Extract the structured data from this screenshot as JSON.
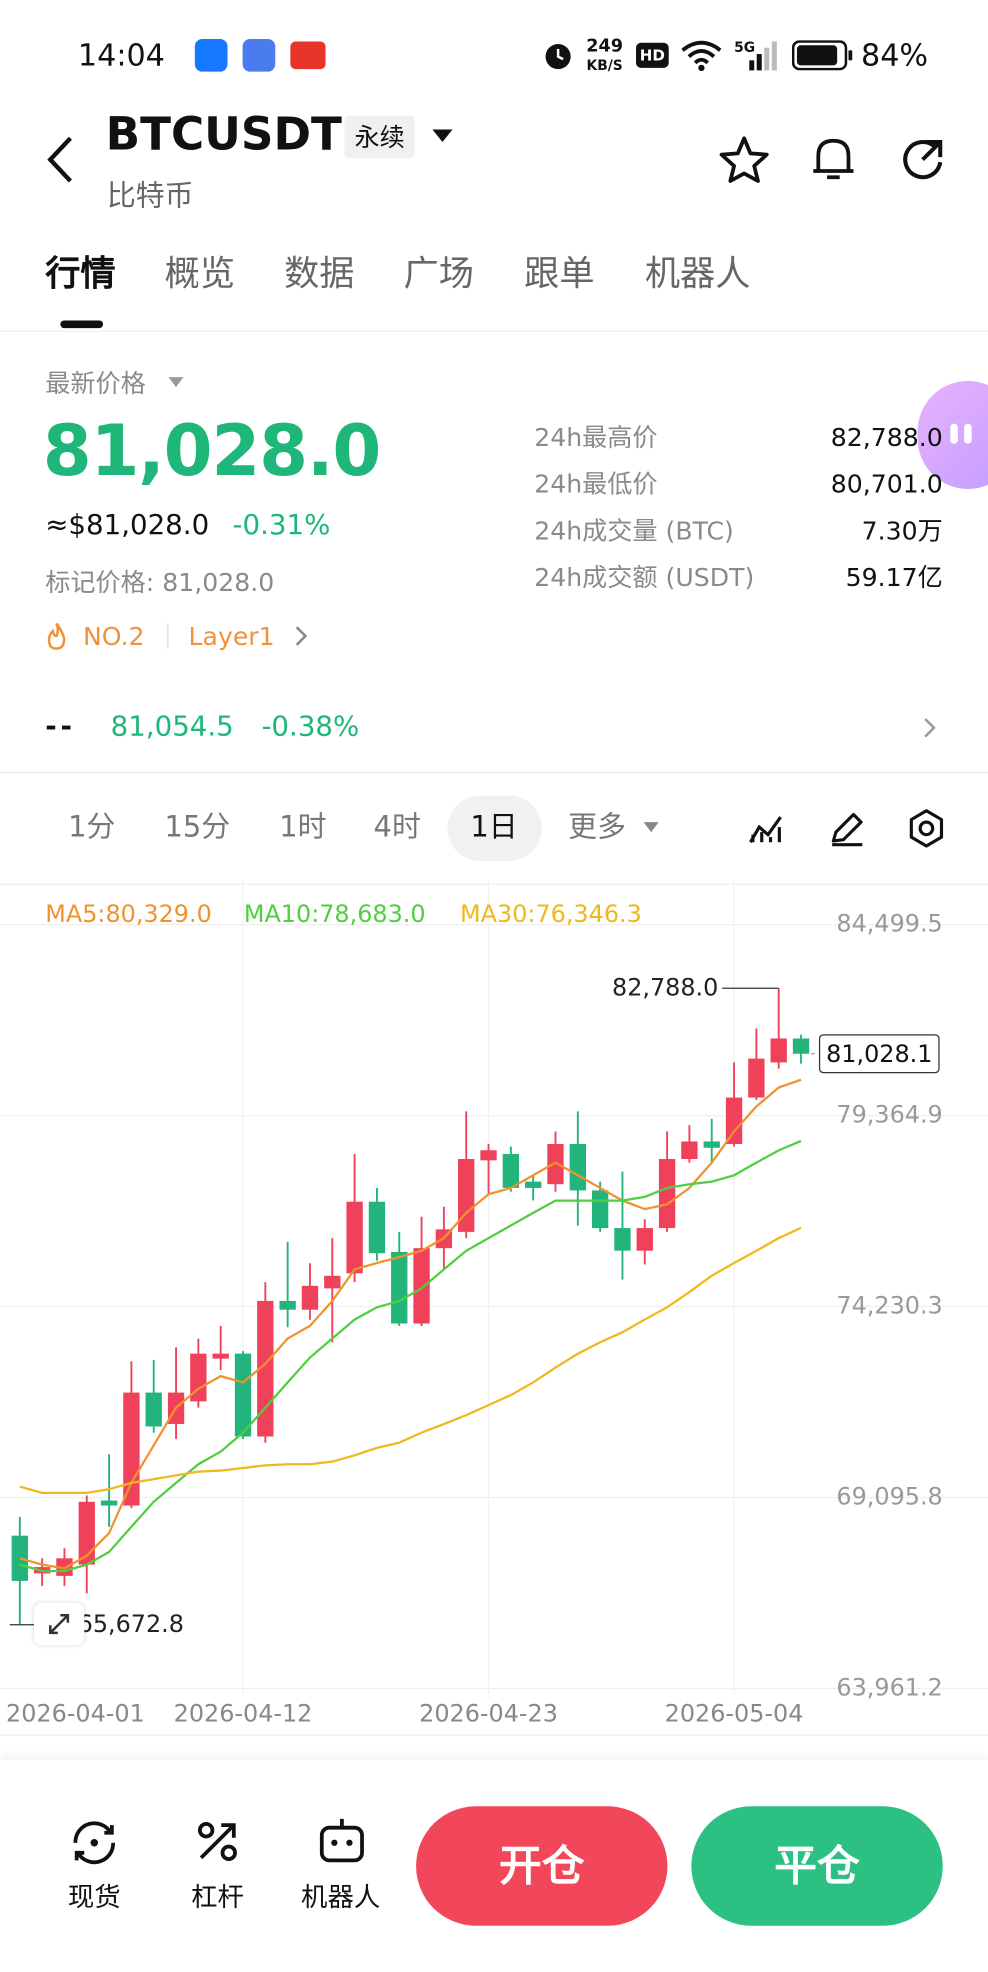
{
  "status_bar": {
    "time": "14:04",
    "network_speed": "249",
    "network_unit": "KB/S",
    "hd": "HD",
    "signal": "5G",
    "battery": "84%"
  },
  "header": {
    "symbol": "BTCUSDT",
    "contract": "永续",
    "name": "比特币"
  },
  "tabs": [
    "行情",
    "概览",
    "数据",
    "广场",
    "跟单",
    "机器人"
  ],
  "price_panel": {
    "label": "最新价格",
    "last_price": "81,028.0",
    "usd_price": "≈$81,028.0",
    "change": "-0.31%",
    "mark_price": "标记价格: 81,028.0",
    "rank": "NO.2",
    "sector": "Layer1",
    "stats": [
      {
        "label": "24h最高价",
        "value": "82,788.0"
      },
      {
        "label": "24h最低价",
        "value": "80,701.0"
      },
      {
        "label": "24h成交量 (BTC)",
        "value": "7.30万"
      },
      {
        "label": "24h成交额 (USDT)",
        "value": "59.17亿"
      }
    ]
  },
  "ticker": {
    "dash": "--",
    "price": "81,054.5",
    "change": "-0.38%"
  },
  "intervals": [
    "1分",
    "15分",
    "1时",
    "4时",
    "1日",
    "更多"
  ],
  "chart_data": {
    "type": "candlestick",
    "x": [
      "2026-04-02",
      "2026-04-03",
      "2026-04-04",
      "2026-04-05",
      "2026-04-06",
      "2026-04-07",
      "2026-04-08",
      "2026-04-09",
      "2026-04-10",
      "2026-04-11",
      "2026-04-12",
      "2026-04-13",
      "2026-04-14",
      "2026-04-15",
      "2026-04-16",
      "2026-04-17",
      "2026-04-18",
      "2026-04-19",
      "2026-04-20",
      "2026-04-21",
      "2026-04-22",
      "2026-04-23",
      "2026-04-24",
      "2026-04-25",
      "2026-04-26",
      "2026-04-27",
      "2026-04-28",
      "2026-04-29",
      "2026-04-30",
      "2026-05-01",
      "2026-05-02",
      "2026-05-03",
      "2026-05-04",
      "2026-05-05",
      "2026-05-06",
      "2026-05-07"
    ],
    "xlim": [
      "2026-04-01",
      "2026-05-08"
    ],
    "xticks": [
      "2026-04-01",
      "2026-04-12",
      "2026-04-23",
      "2026-05-04"
    ],
    "open": [
      68069,
      67056,
      66988,
      67292,
      69014,
      68879,
      71917,
      71073,
      71681,
      72829,
      72964,
      70736,
      74382,
      74145,
      74719,
      75124,
      77049,
      75699,
      73774,
      75800,
      76238,
      78163,
      78332,
      77589,
      77521,
      78602,
      77353,
      76340,
      75732,
      76340,
      78197,
      78669,
      78602,
      79851,
      80796,
      81438
    ],
    "high": [
      68575,
      67461,
      67731,
      69149,
      70263,
      72761,
      72795,
      73133,
      73369,
      73707,
      73031,
      74888,
      75968,
      75395,
      76070,
      78332,
      77420,
      76238,
      76644,
      76914,
      79480,
      78602,
      78534,
      77758,
      78940,
      79480,
      77589,
      77859,
      76576,
      78940,
      79108,
      79277,
      80796,
      81708,
      82788,
      81539
    ],
    "low": [
      65672.8,
      66718,
      66718,
      66516,
      68305,
      68811,
      70837,
      70668,
      71512,
      72525,
      70668,
      70567,
      73673,
      73875,
      73268,
      74888,
      75462,
      73707,
      73707,
      75226,
      76070,
      77251,
      77319,
      77083,
      77319,
      76407,
      76238,
      74956,
      75361,
      76238,
      78095,
      78095,
      78534,
      79783,
      80627,
      80762
    ],
    "close": [
      66853,
      67225,
      67461,
      68980,
      68879,
      71917,
      71006,
      71917,
      72964,
      72964,
      70736,
      74382,
      74145,
      74787,
      75057,
      77049,
      75665,
      73774,
      75800,
      76306,
      78197,
      78433,
      77420,
      77420,
      78602,
      77353,
      76340,
      75732,
      76340,
      78197,
      78669,
      78500,
      79851,
      80897,
      81438,
      81028.1
    ],
    "up_color": "#f0415a",
    "down_color": "#22b47a",
    "ylim": [
      63800,
      85500
    ],
    "yticks": [
      {
        "value": 63961.2,
        "label": "63,961.2"
      },
      {
        "value": 69095.8,
        "label": "69,095.8"
      },
      {
        "value": 74230.3,
        "label": "74,230.3"
      },
      {
        "value": 79364.9,
        "label": "79,364.9"
      },
      {
        "value": 84499.5,
        "label": "84,499.5"
      }
    ],
    "grid": true,
    "moving_averages": [
      {
        "label": "MA5:80,329.0",
        "color": "#f0922e",
        "values": [
          67460,
          67290,
          67190,
          67530,
          68140,
          69490,
          70500,
          71510,
          72020,
          72360,
          72190,
          72690,
          73370,
          73710,
          74380,
          75230,
          75400,
          75560,
          75730,
          76070,
          76750,
          77250,
          77420,
          77760,
          78100,
          77760,
          77420,
          77080,
          76850,
          76980,
          77420,
          78100,
          78940,
          79610,
          80120,
          80329.0
        ]
      },
      {
        "label": "MA10:78,683.0",
        "color": "#4fcf3f",
        "values": [
          67290,
          67120,
          67120,
          67290,
          67630,
          68310,
          68980,
          69490,
          69990,
          70330,
          70840,
          71510,
          72190,
          72860,
          73370,
          73880,
          74210,
          74380,
          74720,
          75230,
          75730,
          76070,
          76410,
          76750,
          77080,
          77080,
          77080,
          77080,
          77180,
          77420,
          77520,
          77590,
          77760,
          78100,
          78430,
          78683.0
        ]
      },
      {
        "label": "MA30:76,346.3",
        "color": "#efb81c",
        "values": [
          69390,
          69220,
          69220,
          69220,
          69320,
          69490,
          69590,
          69690,
          69790,
          69820,
          69890,
          69960,
          69990,
          69990,
          70060,
          70230,
          70430,
          70570,
          70840,
          71070,
          71310,
          71580,
          71850,
          72190,
          72590,
          72960,
          73270,
          73540,
          73880,
          74210,
          74620,
          75060,
          75400,
          75730,
          76070,
          76346.3
        ]
      }
    ],
    "last_price": {
      "value": 81028.1,
      "label": "81,028.1"
    },
    "high_marker": {
      "value": 82788,
      "label": "82,788.0"
    },
    "low_marker": {
      "value": 65672.8,
      "label": "65,672.8"
    }
  },
  "bottom_nav": {
    "items": [
      "现货",
      "杠杆",
      "机器人"
    ],
    "open": "开仓",
    "close": "平仓"
  }
}
